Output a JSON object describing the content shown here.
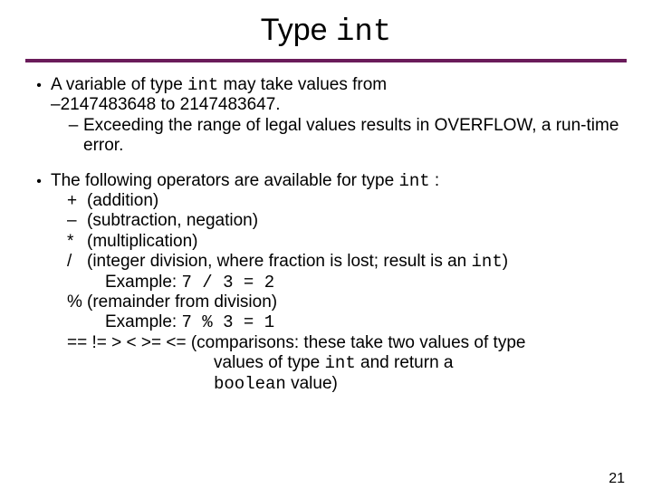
{
  "colors": {
    "rule": "#6a1b5a",
    "text": "#000000",
    "background": "#ffffff"
  },
  "typography": {
    "body_font": "Comic Sans MS",
    "code_font": "Courier New",
    "title_fontsize": 34,
    "body_fontsize": 19
  },
  "title": {
    "prefix": "Type ",
    "code": "int"
  },
  "bullets": [
    {
      "line1_pre": "A variable of type ",
      "line1_code": "int",
      "line1_post": " may take values from",
      "line2": "–2147483648 to 2147483647.",
      "sub": {
        "text": "Exceeding the range of legal values results in OVERFLOW, a run-time error."
      }
    },
    {
      "intro_pre": "The following operators are available for type ",
      "intro_code": "int",
      "intro_post": " :",
      "operators": [
        {
          "sym": "+",
          "desc": "(addition)"
        },
        {
          "sym": "–",
          "desc": "(subtraction, negation)"
        },
        {
          "sym": "*",
          "desc": "(multiplication)"
        },
        {
          "sym": "/",
          "desc_pre": "(integer division, where fraction is lost; result is an ",
          "desc_code": "int",
          "desc_post": ")",
          "example_label": "Example: ",
          "example_code": "7 / 3 = 2"
        },
        {
          "sym": "%",
          "desc": "(remainder from division)",
          "example_label": "Example: ",
          "example_code": "7 % 3 = 1"
        },
        {
          "syms": "== != > < >= <=",
          "desc_pre": "(comparisons:  these take two values of type ",
          "desc_code1": "int",
          "desc_mid": "  and return a ",
          "desc_code2": "boolean",
          "desc_post": " value)"
        }
      ]
    }
  ],
  "page_number": "21"
}
